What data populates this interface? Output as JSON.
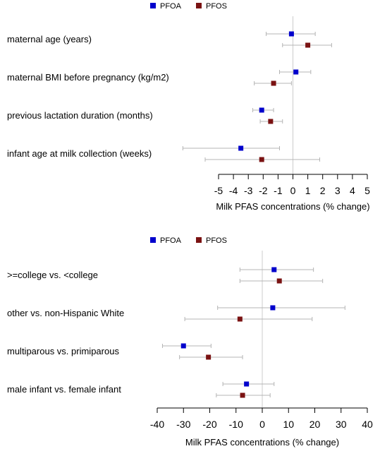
{
  "chart_data": [
    {
      "type": "forest",
      "legend": [
        "PFOA",
        "PFOS"
      ],
      "legend_position": "top",
      "xlabel": "Milk PFAS concentrations (% change)",
      "xlim": [
        -5,
        5
      ],
      "x_ticks": [
        "-5",
        "-4",
        "-3",
        "-2",
        "-1",
        "0",
        "1",
        "2",
        "3",
        "4",
        "5"
      ],
      "categories": [
        "maternal age (years)",
        "maternal BMI before pregnancy (kg/m2)",
        "previous lactation duration (months)",
        "infant age at milk collection (weeks)"
      ],
      "series": [
        {
          "name": "PFOA",
          "color": "#0000cc",
          "estimates": [
            -0.1,
            0.2,
            -2.1,
            -3.5
          ],
          "ci_lower": [
            -1.8,
            -0.9,
            -2.7,
            -7.4
          ],
          "ci_upper": [
            1.5,
            1.2,
            -1.3,
            -0.9
          ]
        },
        {
          "name": "PFOS",
          "color": "#7a1212",
          "estimates": [
            1.0,
            -1.3,
            -1.5,
            -2.1
          ],
          "ci_lower": [
            -0.7,
            -2.6,
            -2.2,
            -5.9
          ],
          "ci_upper": [
            2.6,
            -0.1,
            -0.7,
            1.8
          ]
        }
      ],
      "grid": false
    },
    {
      "type": "forest",
      "legend": [
        "PFOA",
        "PFOS"
      ],
      "legend_position": "top",
      "xlabel": "Milk PFAS concentrations (% change)",
      "xlim": [
        -40,
        40
      ],
      "x_ticks": [
        "-40",
        "-30",
        "-20",
        "-10",
        "0",
        "10",
        "20",
        "30",
        "40"
      ],
      "categories": [
        ">=college vs. <college",
        "other vs. non-Hispanic White",
        "multiparous vs. primiparous",
        "male infant vs. female infant"
      ],
      "series": [
        {
          "name": "PFOA",
          "color": "#0000cc",
          "estimates": [
            4.5,
            4.0,
            -30.0,
            -6.0
          ],
          "ci_lower": [
            -8.5,
            -17.0,
            -38.0,
            -15.0
          ],
          "ci_upper": [
            19.5,
            31.5,
            -19.5,
            4.5
          ]
        },
        {
          "name": "PFOS",
          "color": "#7a1212",
          "estimates": [
            6.5,
            -8.5,
            -20.5,
            -7.5
          ],
          "ci_lower": [
            -8.5,
            -29.5,
            -31.5,
            -17.5
          ],
          "ci_upper": [
            23.0,
            19.0,
            -7.5,
            3.0
          ]
        }
      ],
      "grid": false
    }
  ]
}
